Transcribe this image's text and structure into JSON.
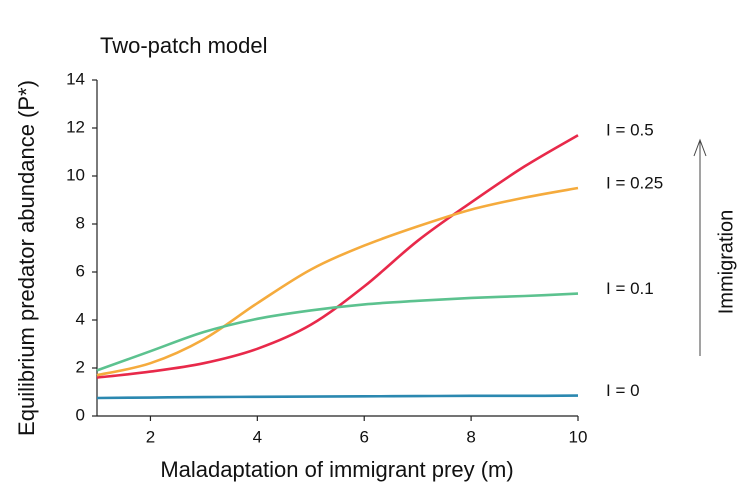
{
  "chart_data": {
    "type": "line",
    "title": "Two-patch model",
    "x_label": "Maladaptation of immigrant prey (m)",
    "y_label": "Equilibrium predator abundance (P*)",
    "annotation": "Immigration",
    "x": [
      1,
      2,
      3,
      4,
      5,
      6,
      7,
      8,
      9,
      10
    ],
    "series": [
      {
        "name": "I = 0.5",
        "color": "#e8294a",
        "values": [
          1.6,
          1.85,
          2.2,
          2.8,
          3.8,
          5.4,
          7.3,
          8.9,
          10.4,
          11.7
        ]
      },
      {
        "name": "I = 0.25",
        "color": "#f5ab3d",
        "values": [
          1.7,
          2.2,
          3.2,
          4.7,
          6.1,
          7.1,
          7.9,
          8.6,
          9.1,
          9.5
        ]
      },
      {
        "name": "I = 0.1",
        "color": "#5cc28f",
        "values": [
          1.9,
          2.7,
          3.5,
          4.05,
          4.4,
          4.65,
          4.8,
          4.92,
          5.0,
          5.1
        ]
      },
      {
        "name": "I = 0",
        "color": "#2b88b0",
        "values": [
          0.75,
          0.77,
          0.79,
          0.8,
          0.81,
          0.82,
          0.83,
          0.84,
          0.84,
          0.85
        ]
      }
    ],
    "xlim": [
      1,
      10
    ],
    "xticks": [
      2,
      4,
      6,
      8,
      10
    ],
    "ylim": [
      0,
      14
    ],
    "yticks": [
      0,
      2,
      4,
      6,
      8,
      10,
      12,
      14
    ],
    "grid": false
  }
}
